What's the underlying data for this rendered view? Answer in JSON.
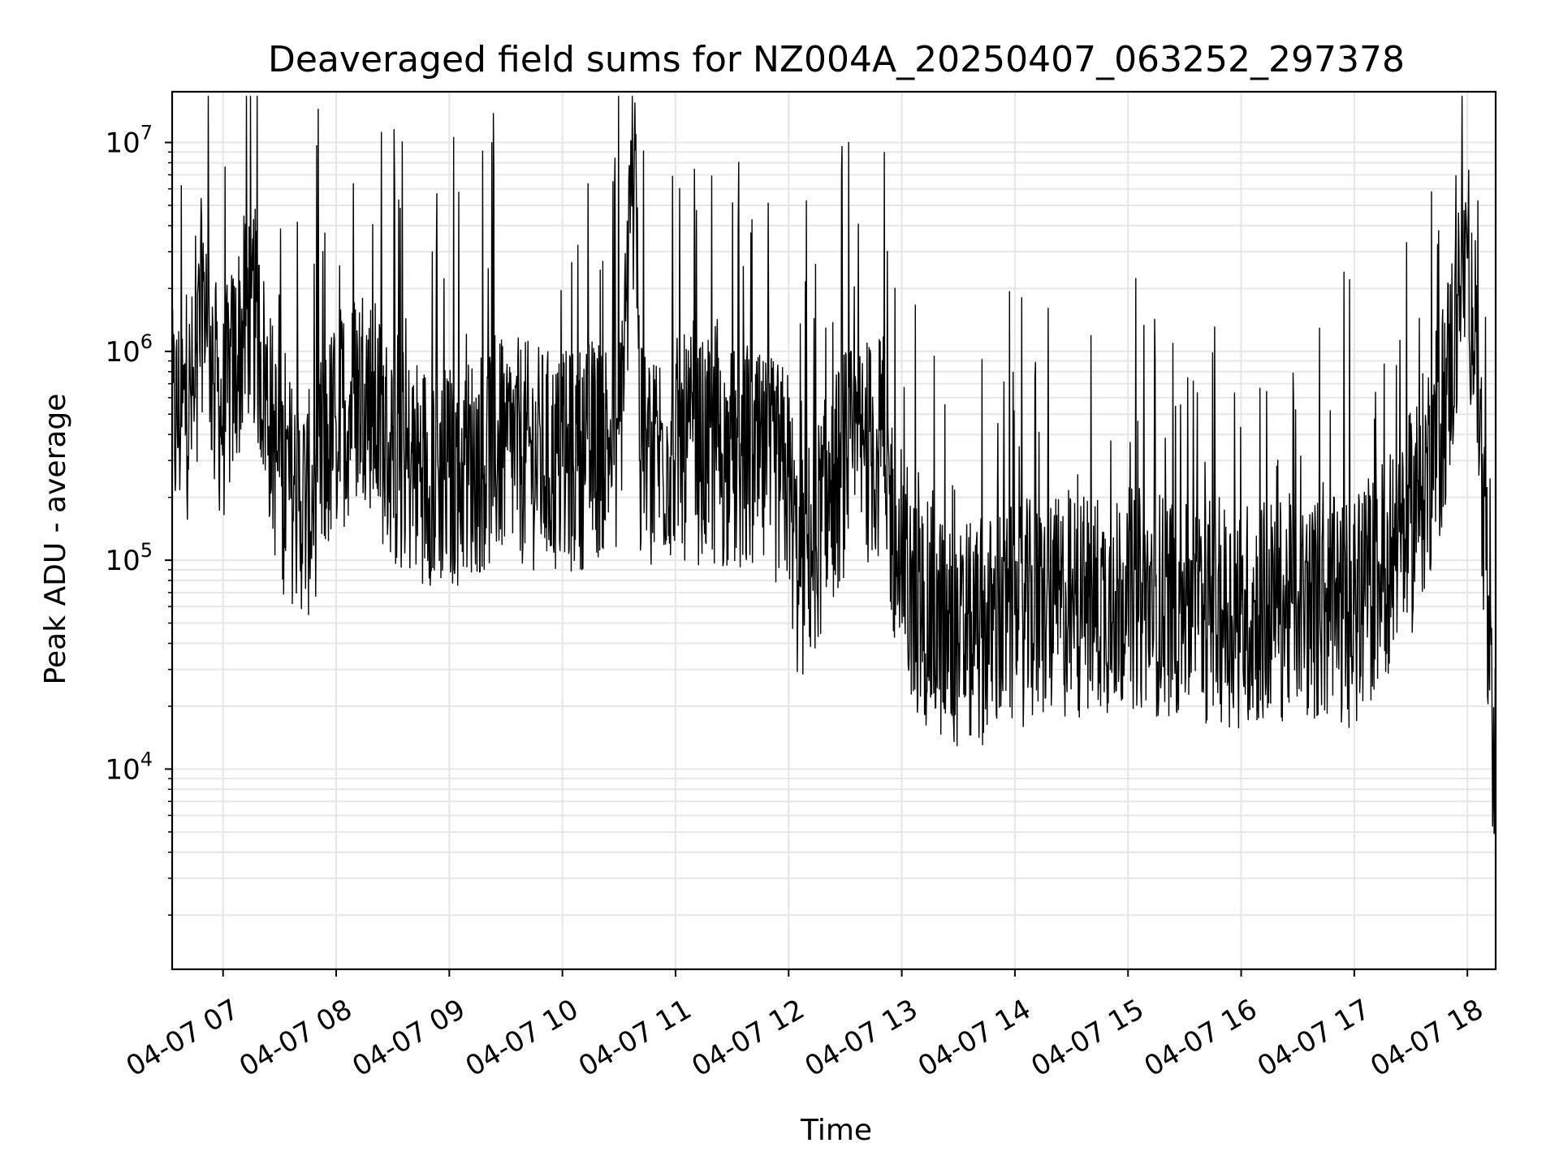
{
  "chart_data": {
    "type": "line",
    "title": "Deaveraged field sums for NZ004A_20250407_063252_297378",
    "xlabel": "Time",
    "ylabel": "Peak ADU - average",
    "yscale": "log",
    "ylim": [
      1100,
      17500000
    ],
    "xlim": [
      "2025-04-07 06:33",
      "2025-04-07 18:15"
    ],
    "x_tick_labels": [
      "04-07 07",
      "04-07 08",
      "04-07 09",
      "04-07 10",
      "04-07 11",
      "04-07 12",
      "04-07 13",
      "04-07 14",
      "04-07 15",
      "04-07 16",
      "04-07 17",
      "04-07 18"
    ],
    "y_tick_labels": [
      {
        "value": 10000,
        "base": "10",
        "exp": "4"
      },
      {
        "value": 100000,
        "base": "10",
        "exp": "5"
      },
      {
        "value": 1000000,
        "base": "10",
        "exp": "6"
      },
      {
        "value": 10000000,
        "base": "10",
        "exp": "7"
      }
    ],
    "grid": true,
    "line_color": "#000000",
    "grid_color": "#e6e6e6",
    "series": [
      {
        "x": [
          "2025-04-07 06:33",
          "2025-04-07 06:45",
          "2025-04-07 06:50",
          "2025-04-07 06:55",
          "2025-04-07 07:00",
          "2025-04-07 07:15",
          "2025-04-07 07:30",
          "2025-04-07 07:45",
          "2025-04-07 08:00",
          "2025-04-07 08:15",
          "2025-04-07 08:30",
          "2025-04-07 09:00",
          "2025-04-07 09:30",
          "2025-04-07 10:00",
          "2025-04-07 10:30",
          "2025-04-07 10:39",
          "2025-04-07 10:41",
          "2025-04-07 11:00",
          "2025-04-07 11:30",
          "2025-04-07 12:00",
          "2025-04-07 12:05",
          "2025-04-07 12:30",
          "2025-04-07 12:50",
          "2025-04-07 13:00",
          "2025-04-07 13:30",
          "2025-04-07 14:00",
          "2025-04-07 14:30",
          "2025-04-07 15:00",
          "2025-04-07 15:30",
          "2025-04-07 16:00",
          "2025-04-07 16:30",
          "2025-04-07 17:00",
          "2025-04-07 17:30",
          "2025-04-07 17:45",
          "2025-04-07 18:00",
          "2025-04-07 18:05",
          "2025-04-07 18:10",
          "2025-04-07 18:15"
        ],
        "y": [
          450000,
          600000,
          2400000,
          700000,
          500000,
          1800000,
          250000,
          180000,
          450000,
          700000,
          300000,
          250000,
          350000,
          280000,
          400000,
          11000000,
          300000,
          350000,
          300000,
          250000,
          80000,
          300000,
          350000,
          70000,
          40000,
          55000,
          60000,
          65000,
          60000,
          55000,
          60000,
          55000,
          150000,
          400000,
          2800000,
          1000000,
          90000,
          3200
        ]
      }
    ]
  }
}
